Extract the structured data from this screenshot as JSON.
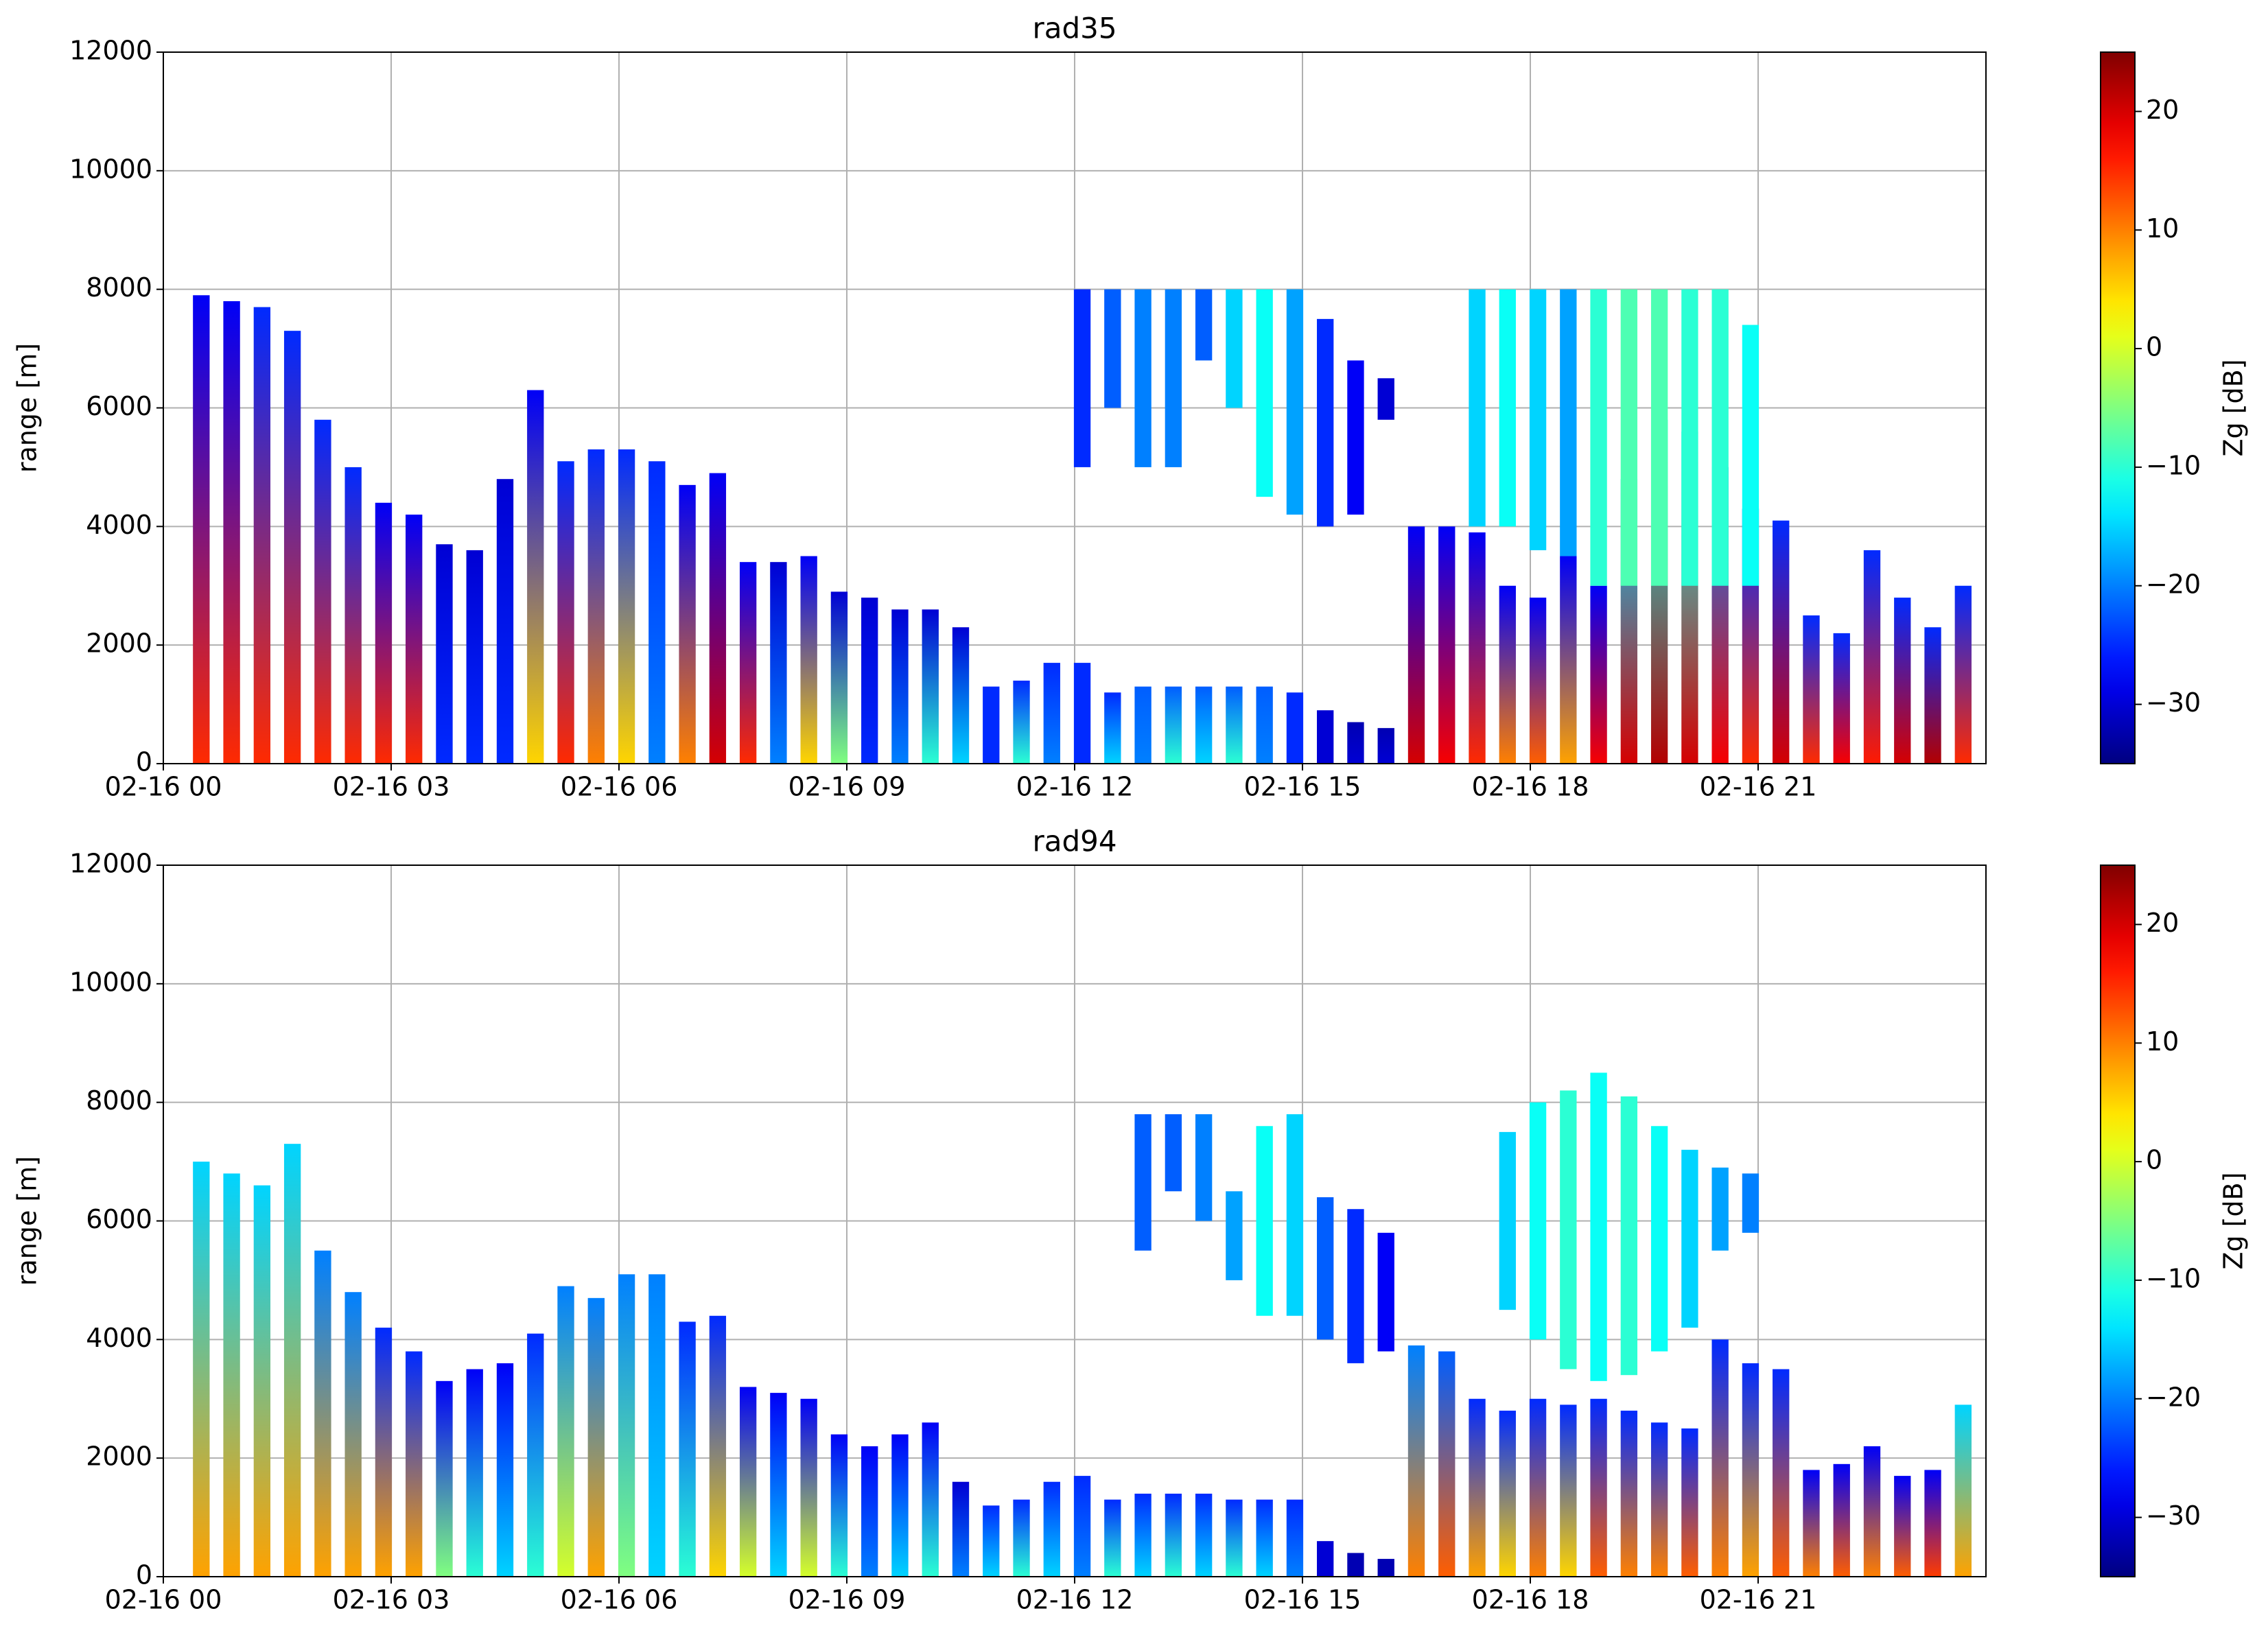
{
  "chart_data": [
    {
      "type": "heatmap",
      "title": "rad35",
      "ylabel": "range [m]",
      "colorbar_label": "Zg [dB]",
      "xlim": [
        0,
        24
      ],
      "xticks": [
        {
          "value": 0,
          "label": "02-16 00"
        },
        {
          "value": 3,
          "label": "02-16 03"
        },
        {
          "value": 6,
          "label": "02-16 06"
        },
        {
          "value": 9,
          "label": "02-16 09"
        },
        {
          "value": 12,
          "label": "02-16 12"
        },
        {
          "value": 15,
          "label": "02-16 15"
        },
        {
          "value": 18,
          "label": "02-16 18"
        },
        {
          "value": 21,
          "label": "02-16 21"
        }
      ],
      "ylim": [
        0,
        12000
      ],
      "yticks": [
        0,
        2000,
        4000,
        6000,
        8000,
        10000,
        12000
      ],
      "grid": true,
      "clim": [
        -35,
        25
      ],
      "cticks": [
        {
          "value": -30,
          "label": "−30"
        },
        {
          "value": -20,
          "label": "−20"
        },
        {
          "value": -10,
          "label": "−10"
        },
        0,
        10,
        20
      ],
      "colormap": "jet",
      "columns": {
        "x": [
          0.5,
          0.9,
          1.3,
          1.7,
          2.1,
          2.5,
          2.9,
          3.3,
          3.7,
          4.1,
          4.5,
          4.9,
          5.3,
          5.7,
          6.1,
          6.5,
          6.9,
          7.3,
          7.7,
          8.1,
          8.5,
          8.9,
          9.3,
          9.7,
          10.1,
          10.5,
          10.9,
          11.3,
          11.7,
          12.1,
          12.5,
          12.9,
          13.3,
          13.7,
          14.1,
          14.5,
          14.9,
          15.3,
          15.7,
          16.1,
          16.5,
          16.9,
          17.3,
          17.7,
          18.1,
          18.5,
          18.9,
          19.3,
          19.7,
          20.1,
          20.5,
          20.9,
          21.3,
          21.7,
          22.1,
          22.5,
          22.9,
          23.3,
          23.7
        ],
        "top": [
          7900,
          7800,
          7700,
          7300,
          5800,
          5000,
          4400,
          4200,
          3700,
          3600,
          4800,
          6300,
          5100,
          5300,
          5300,
          5100,
          4700,
          4900,
          3400,
          3400,
          3500,
          2900,
          2800,
          2600,
          2600,
          2300,
          1300,
          1400,
          1700,
          1700,
          1200,
          1300,
          1300,
          1300,
          1300,
          1300,
          1200,
          900,
          700,
          600,
          4000,
          4000,
          3900,
          3000,
          2800,
          3500,
          3000,
          4800,
          5800,
          5600,
          5000,
          4300,
          4100,
          2500,
          2200,
          3600,
          2800,
          2300,
          3000
        ],
        "z_base": [
          15,
          15,
          15,
          15,
          15,
          15,
          15,
          15,
          -25,
          -25,
          -25,
          5,
          15,
          10,
          5,
          -20,
          10,
          20,
          15,
          -20,
          5,
          -5,
          -25,
          -20,
          -10,
          -15,
          -25,
          -10,
          -20,
          -25,
          -15,
          -20,
          -10,
          -15,
          -10,
          -20,
          -25,
          -30,
          -30,
          -30,
          20,
          18,
          15,
          10,
          12,
          8,
          18,
          20,
          22,
          20,
          18,
          15,
          20,
          15,
          18,
          16,
          20,
          22,
          15
        ],
        "z_top": [
          -28,
          -28,
          -25,
          -25,
          -25,
          -25,
          -28,
          -28,
          -30,
          -30,
          -30,
          -28,
          -25,
          -25,
          -25,
          -25,
          -28,
          -28,
          -28,
          -30,
          -28,
          -30,
          -30,
          -30,
          -30,
          -30,
          -25,
          -25,
          -25,
          -25,
          -25,
          -22,
          -22,
          -22,
          -22,
          -22,
          -25,
          -30,
          -32,
          -32,
          -28,
          -28,
          -28,
          -28,
          -28,
          -28,
          -28,
          -15,
          -12,
          -12,
          -20,
          -25,
          -25,
          -25,
          -25,
          -25,
          -25,
          -25,
          -25
        ]
      },
      "upper": {
        "x": [
          12.1,
          12.5,
          12.9,
          13.3,
          13.7,
          14.1,
          14.5,
          14.9,
          15.3,
          15.7,
          16.1,
          17.3,
          17.7,
          18.1,
          18.5,
          18.9,
          19.3,
          19.7,
          20.1,
          20.5,
          20.9
        ],
        "base": [
          5000,
          6000,
          5000,
          5000,
          6800,
          6000,
          4500,
          4200,
          4000,
          4200,
          5800,
          4000,
          4000,
          3600,
          3500,
          3000,
          3000,
          3000,
          3000,
          3000,
          3000
        ],
        "top": [
          8000,
          8000,
          8000,
          8000,
          8000,
          8000,
          8000,
          8000,
          7500,
          6800,
          6500,
          8000,
          8000,
          8000,
          8000,
          8000,
          8000,
          8000,
          8000,
          8000,
          7400
        ],
        "z": [
          -25,
          -22,
          -20,
          -20,
          -22,
          -15,
          -12,
          -18,
          -25,
          -28,
          -30,
          -15,
          -12,
          -15,
          -18,
          -10,
          -8,
          -8,
          -10,
          -10,
          -12
        ]
      }
    },
    {
      "type": "heatmap",
      "title": "rad94",
      "ylabel": "range [m]",
      "colorbar_label": "Zg [dB]",
      "xlim": [
        0,
        24
      ],
      "xticks": [
        {
          "value": 0,
          "label": "02-16 00"
        },
        {
          "value": 3,
          "label": "02-16 03"
        },
        {
          "value": 6,
          "label": "02-16 06"
        },
        {
          "value": 9,
          "label": "02-16 09"
        },
        {
          "value": 12,
          "label": "02-16 12"
        },
        {
          "value": 15,
          "label": "02-16 15"
        },
        {
          "value": 18,
          "label": "02-16 18"
        },
        {
          "value": 21,
          "label": "02-16 21"
        }
      ],
      "ylim": [
        0,
        12000
      ],
      "yticks": [
        0,
        2000,
        4000,
        6000,
        8000,
        10000,
        12000
      ],
      "grid": true,
      "clim": [
        -35,
        25
      ],
      "cticks": [
        {
          "value": -30,
          "label": "−30"
        },
        {
          "value": -20,
          "label": "−20"
        },
        {
          "value": -10,
          "label": "−10"
        },
        0,
        10,
        20
      ],
      "colormap": "jet",
      "columns": {
        "x": [
          0.5,
          0.9,
          1.3,
          1.7,
          2.1,
          2.5,
          2.9,
          3.3,
          3.7,
          4.1,
          4.5,
          4.9,
          5.3,
          5.7,
          6.1,
          6.5,
          6.9,
          7.3,
          7.7,
          8.1,
          8.5,
          8.9,
          9.3,
          9.7,
          10.1,
          10.5,
          10.9,
          11.3,
          11.7,
          12.1,
          12.5,
          12.9,
          13.3,
          13.7,
          14.1,
          14.5,
          14.9,
          15.3,
          15.7,
          16.1,
          16.5,
          16.9,
          17.3,
          17.7,
          18.1,
          18.5,
          18.9,
          19.3,
          19.7,
          20.1,
          20.5,
          20.9,
          21.3,
          21.7,
          22.1,
          22.5,
          22.9,
          23.3,
          23.7
        ],
        "top": [
          7000,
          6800,
          6600,
          7300,
          5500,
          4800,
          4200,
          3800,
          3300,
          3500,
          3600,
          4100,
          4900,
          4700,
          5100,
          5100,
          4300,
          4400,
          3200,
          3100,
          3000,
          2400,
          2200,
          2400,
          2600,
          1600,
          1200,
          1300,
          1600,
          1700,
          1300,
          1400,
          1400,
          1400,
          1300,
          1300,
          1300,
          600,
          400,
          300,
          3900,
          3800,
          3000,
          2800,
          3000,
          2900,
          3000,
          2800,
          2600,
          2500,
          4000,
          3600,
          3500,
          1800,
          1900,
          2200,
          1700,
          1800,
          2900
        ],
        "z_base": [
          8,
          8,
          8,
          8,
          8,
          8,
          8,
          8,
          -5,
          -10,
          -15,
          -10,
          0,
          8,
          -5,
          -15,
          -10,
          5,
          0,
          -15,
          0,
          -10,
          -20,
          -15,
          -10,
          -20,
          -15,
          -10,
          -15,
          -20,
          -10,
          -15,
          -10,
          -15,
          -10,
          -15,
          -20,
          -30,
          -32,
          -32,
          10,
          12,
          8,
          5,
          10,
          5,
          12,
          10,
          10,
          12,
          10,
          8,
          12,
          10,
          12,
          10,
          12,
          14,
          8
        ],
        "z_top": [
          -15,
          -15,
          -15,
          -15,
          -20,
          -20,
          -25,
          -25,
          -28,
          -28,
          -28,
          -25,
          -20,
          -20,
          -20,
          -20,
          -25,
          -25,
          -28,
          -28,
          -28,
          -28,
          -28,
          -28,
          -28,
          -30,
          -25,
          -25,
          -25,
          -25,
          -25,
          -25,
          -25,
          -25,
          -25,
          -25,
          -25,
          -30,
          -32,
          -32,
          -20,
          -22,
          -25,
          -25,
          -25,
          -25,
          -25,
          -25,
          -25,
          -25,
          -25,
          -25,
          -25,
          -28,
          -28,
          -28,
          -28,
          -28,
          -15
        ]
      },
      "upper": {
        "x": [
          12.9,
          13.3,
          13.7,
          14.1,
          14.5,
          14.9,
          15.3,
          15.7,
          16.1,
          17.7,
          18.1,
          18.5,
          18.9,
          19.3,
          19.7,
          20.1,
          20.5,
          20.9
        ],
        "base": [
          5500,
          6500,
          6000,
          5000,
          4400,
          4400,
          4000,
          3600,
          3800,
          4500,
          4000,
          3500,
          3300,
          3400,
          3800,
          4200,
          5500,
          5800
        ],
        "top": [
          7800,
          7800,
          7800,
          6500,
          7600,
          7800,
          6400,
          6200,
          5800,
          7500,
          8000,
          8200,
          8500,
          8100,
          7600,
          7200,
          6900,
          6800
        ],
        "z": [
          -22,
          -22,
          -20,
          -18,
          -12,
          -15,
          -22,
          -25,
          -28,
          -15,
          -12,
          -10,
          -12,
          -10,
          -12,
          -15,
          -18,
          -20
        ]
      }
    }
  ]
}
